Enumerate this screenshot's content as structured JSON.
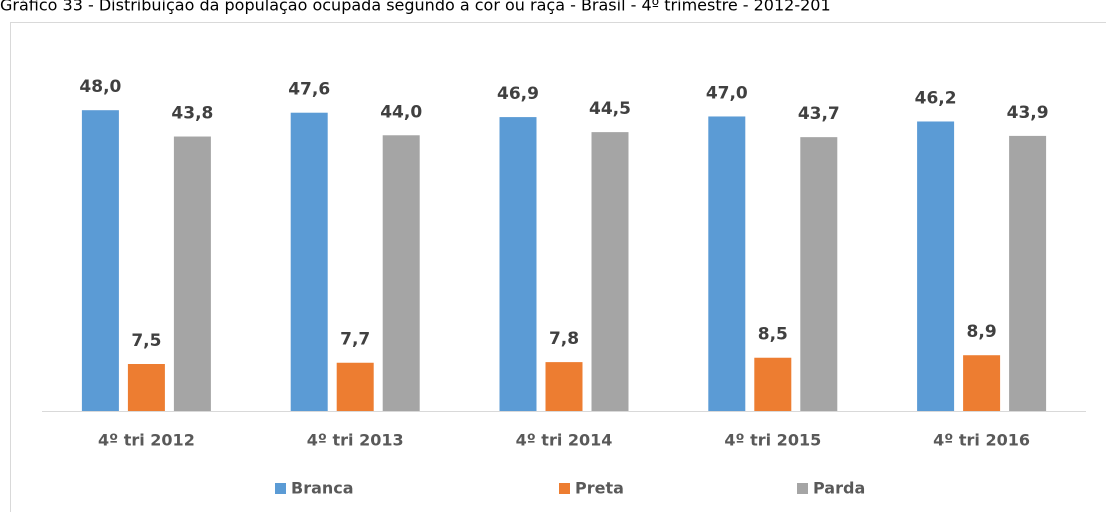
{
  "chart_data": {
    "type": "bar",
    "title": "Gráfico 33 - Distribuição da população ocupada segundo a cor ou raça - Brasil - 4º trimestre - 2012-201",
    "categories": [
      "4º tri 2012",
      "4º tri 2013",
      "4º tri 2014",
      "4º tri 2015",
      "4º tri 2016"
    ],
    "ylim": [
      0,
      60
    ],
    "series": [
      {
        "name": "Branca",
        "color": "#5b9bd5",
        "values": [
          48.0,
          47.6,
          46.9,
          47.0,
          46.2
        ],
        "value_labels": [
          "48,0",
          "47,6",
          "46,9",
          "47,0",
          "46,2"
        ]
      },
      {
        "name": "Preta",
        "color": "#ed7d31",
        "values": [
          7.5,
          7.7,
          7.8,
          8.5,
          8.9
        ],
        "value_labels": [
          "7,5",
          "7,7",
          "7,8",
          "8,5",
          "8,9"
        ]
      },
      {
        "name": "Parda",
        "color": "#a5a5a5",
        "values": [
          43.8,
          44.0,
          44.5,
          43.7,
          43.9
        ],
        "value_labels": [
          "43,8",
          "44,0",
          "44,5",
          "43,7",
          "43,9"
        ]
      }
    ],
    "legend": "bottom"
  }
}
